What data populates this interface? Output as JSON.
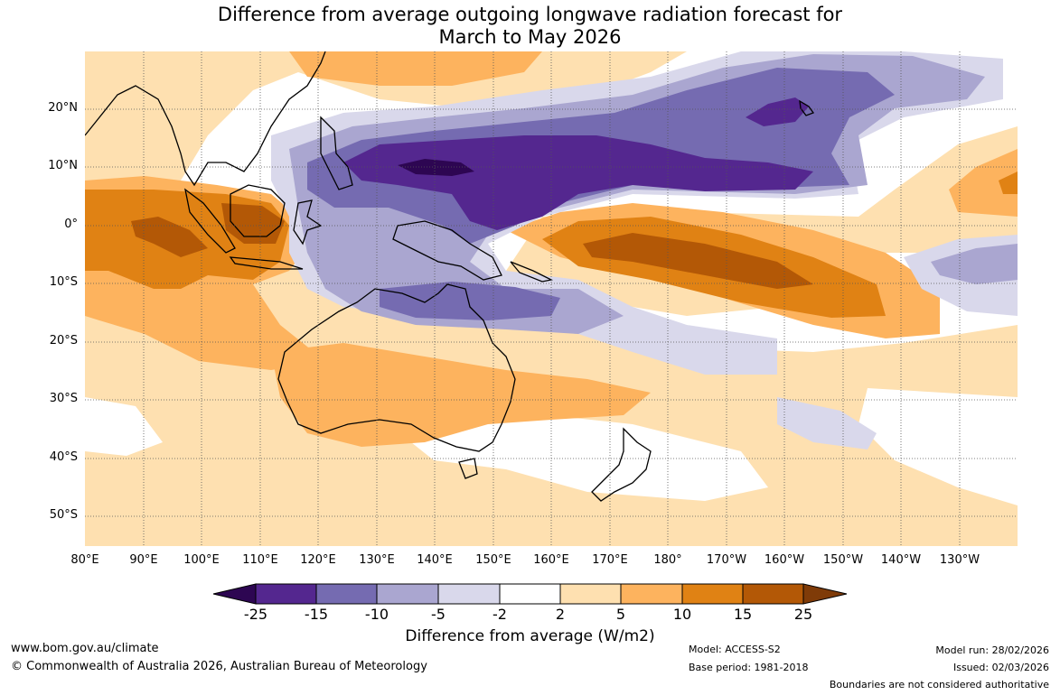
{
  "title": {
    "line1": "Difference from average outgoing longwave radiation forecast for",
    "line2": "March to May 2026"
  },
  "map": {
    "lat_labels": [
      "20°N",
      "10°N",
      "0°",
      "10°S",
      "20°S",
      "30°S",
      "40°S",
      "50°S"
    ],
    "lon_labels": [
      "80°E",
      "90°E",
      "100°E",
      "110°E",
      "120°E",
      "130°E",
      "140°E",
      "150°E",
      "160°E",
      "170°E",
      "180°",
      "170°W",
      "160°W",
      "150°W",
      "140°W",
      "130°W"
    ]
  },
  "colorbar": {
    "bins": [
      {
        "color": "#2d0652"
      },
      {
        "color": "#54278f"
      },
      {
        "color": "#756bb1"
      },
      {
        "color": "#aaa6d0"
      },
      {
        "color": "#d9d8eb"
      },
      {
        "color": "#ffffff"
      },
      {
        "color": "#fee0b0"
      },
      {
        "color": "#fdb35e"
      },
      {
        "color": "#e08214"
      },
      {
        "color": "#b35806"
      },
      {
        "color": "#7f3b08"
      }
    ],
    "tick_labels": [
      "-25",
      "-15",
      "-10",
      "-5",
      "-2",
      "2",
      "5",
      "10",
      "15",
      "25"
    ],
    "title": "Difference from average (W/m2)"
  },
  "footer": {
    "url": "www.bom.gov.au/climate",
    "copyright": "© Commonwealth of Australia 2026, Australian Bureau of Meteorology",
    "model": "Model: ACCESS-S2",
    "base_period": "Base period: 1981-2018",
    "model_run": "Model run: 28/02/2026",
    "issued": "Issued: 02/03/2026",
    "disclaimer": "Boundaries are not considered authoritative"
  }
}
